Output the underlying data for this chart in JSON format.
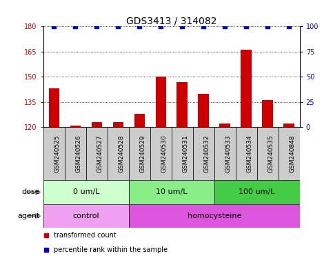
{
  "title": "GDS3413 / 314082",
  "samples": [
    "GSM240525",
    "GSM240526",
    "GSM240527",
    "GSM240528",
    "GSM240529",
    "GSM240530",
    "GSM240531",
    "GSM240532",
    "GSM240533",
    "GSM240534",
    "GSM240535",
    "GSM240848"
  ],
  "bar_values": [
    143,
    121,
    123,
    123,
    128,
    150,
    147,
    140,
    122,
    166,
    136,
    122
  ],
  "percentile_values": [
    100,
    100,
    100,
    100,
    100,
    100,
    100,
    100,
    100,
    100,
    100,
    100
  ],
  "bar_color": "#cc0000",
  "percentile_color": "#0000cc",
  "ylim_left": [
    120,
    180
  ],
  "ylim_right": [
    0,
    100
  ],
  "yticks_left": [
    120,
    135,
    150,
    165,
    180
  ],
  "yticks_right": [
    0,
    25,
    50,
    75,
    100
  ],
  "dose_groups": [
    {
      "label": "0 um/L",
      "start": 0,
      "end": 4,
      "color": "#ccffcc"
    },
    {
      "label": "10 um/L",
      "start": 4,
      "end": 8,
      "color": "#88ee88"
    },
    {
      "label": "100 um/L",
      "start": 8,
      "end": 12,
      "color": "#44cc44"
    }
  ],
  "agent_groups": [
    {
      "label": "control",
      "start": 0,
      "end": 4,
      "color": "#f0a0f0"
    },
    {
      "label": "homocysteine",
      "start": 4,
      "end": 12,
      "color": "#dd55dd"
    }
  ],
  "dose_label": "dose",
  "agent_label": "agent",
  "legend_bar": "transformed count",
  "legend_pct": "percentile rank within the sample",
  "bg_color": "#ffffff",
  "sample_bg": "#cccccc",
  "grid_color": "#000000",
  "title_fontsize": 10,
  "tick_fontsize": 7,
  "label_fontsize": 8,
  "sample_fontsize": 6.5
}
